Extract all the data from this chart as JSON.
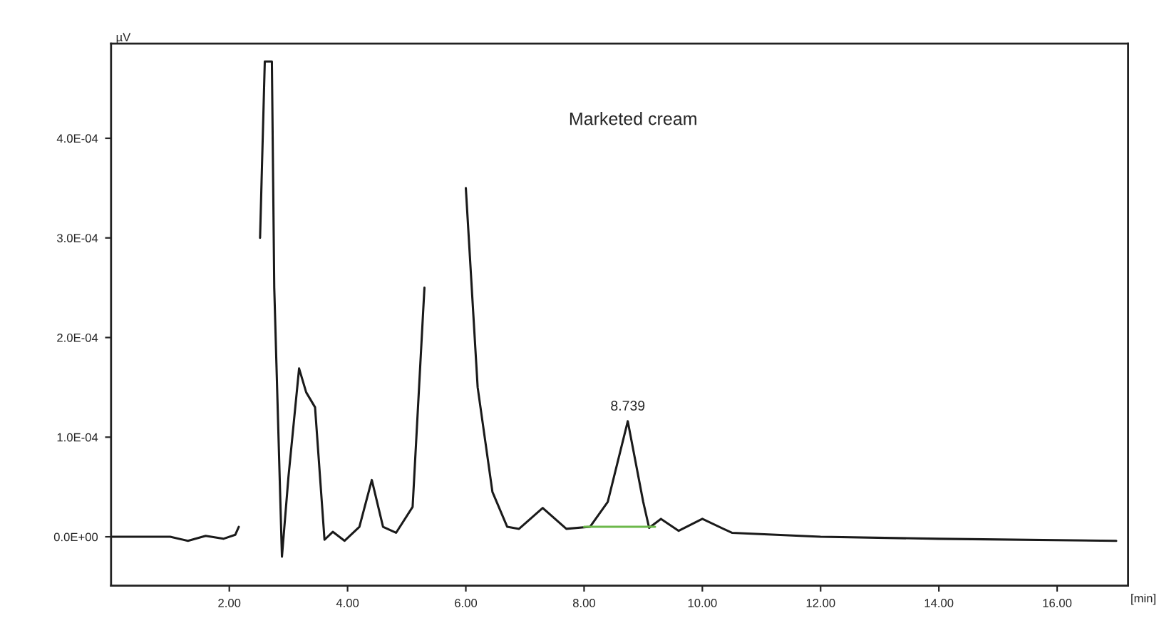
{
  "chart_data": {
    "type": "line",
    "ylabel": "µV",
    "xlabel": "[min]",
    "annotations": [
      "Marketed cream",
      {
        "text": "8.739",
        "x": 8.739,
        "y": 0.000116
      }
    ],
    "xlim": [
      0,
      17.2
    ],
    "ylim": [
      -4.9e-05,
      0.000495
    ],
    "xticks": [
      {
        "value": 2,
        "label": "2.00"
      },
      {
        "value": 4,
        "label": "4.00"
      },
      {
        "value": 6,
        "label": "6.00"
      },
      {
        "value": 8,
        "label": "8.00"
      },
      {
        "value": 10,
        "label": "10.00"
      },
      {
        "value": 12,
        "label": "12.00"
      },
      {
        "value": 14,
        "label": "14.00"
      },
      {
        "value": 16,
        "label": "16.00"
      }
    ],
    "yticks": [
      {
        "value": 0,
        "label": "0.0E+00"
      },
      {
        "value": 0.0001,
        "label": "1.0E-04"
      },
      {
        "value": 0.0002,
        "label": "2.0E-04"
      },
      {
        "value": 0.0003,
        "label": "3.0E-04"
      },
      {
        "value": 0.0004,
        "label": "4.0E-04"
      }
    ],
    "grid": false,
    "legend": false,
    "series": [
      {
        "color": "#1a1a1a",
        "x": [
          0,
          1.0,
          1.3,
          1.6,
          1.9,
          2.1,
          2.16,
          2.17,
          2.5,
          2.52,
          2.6,
          2.72,
          2.76,
          2.89,
          3.0,
          3.18,
          3.3,
          3.45,
          3.61,
          3.75,
          3.95,
          4.2,
          4.41,
          4.6,
          4.82,
          5.1,
          5.3,
          5.38,
          5.94,
          6.0,
          6.2,
          6.45,
          6.7,
          6.9,
          7.3,
          7.7,
          8.1,
          8.4,
          8.739,
          9.0,
          9.1,
          9.3,
          9.6,
          10.0,
          10.5,
          12.0,
          14.0,
          17.0
        ],
        "values": [
          0,
          0,
          -4e-06,
          1e-06,
          -2e-06,
          2e-06,
          1e-05,
          null,
          null,
          0.0003,
          0.000477,
          0.000477,
          0.00025,
          -2e-05,
          6e-05,
          0.000169,
          0.000145,
          0.00013,
          -3e-06,
          5e-06,
          -4e-06,
          1e-05,
          5.7e-05,
          1e-05,
          4e-06,
          3e-05,
          0.00025,
          null,
          null,
          0.00035,
          0.00015,
          4.5e-05,
          1e-05,
          8e-06,
          2.9e-05,
          8e-06,
          1e-05,
          3.5e-05,
          0.000116,
          3.5e-05,
          9e-06,
          1.8e-05,
          6e-06,
          1.8e-05,
          4e-06,
          0,
          -2e-06,
          -4e-06
        ]
      },
      {
        "color": "#6cb84a",
        "x": [
          8.0,
          9.2
        ],
        "values": [
          1e-05,
          1e-05
        ]
      }
    ]
  }
}
